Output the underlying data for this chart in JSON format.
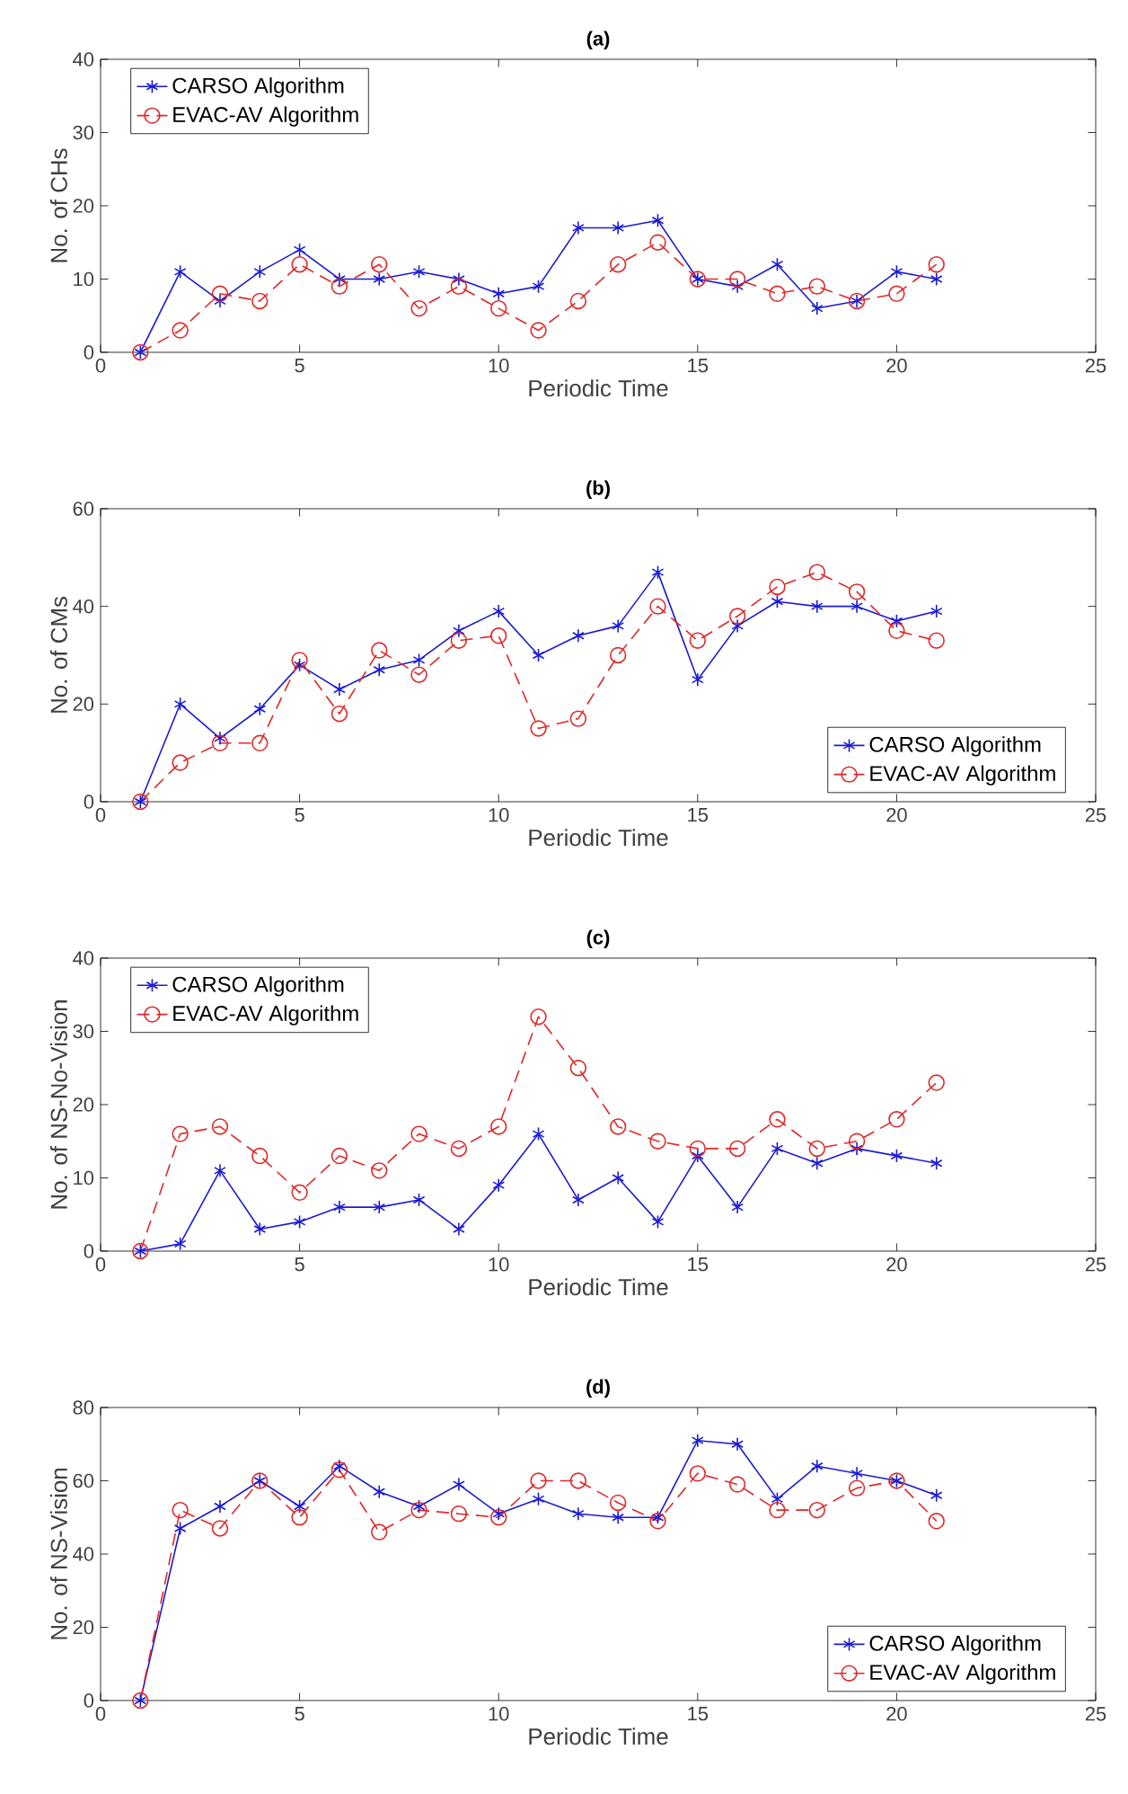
{
  "chart_data": [
    {
      "type": "line",
      "title": "(a)",
      "xlabel": "Periodic Time",
      "ylabel": "No. of CHs",
      "x": [
        1,
        2,
        3,
        4,
        5,
        6,
        7,
        8,
        9,
        10,
        11,
        12,
        13,
        14,
        15,
        16,
        17,
        18,
        19,
        20,
        21
      ],
      "xlim": [
        0,
        25
      ],
      "xticks": [
        0,
        5,
        10,
        15,
        20,
        25
      ],
      "ylim": [
        0,
        40
      ],
      "yticks": [
        0,
        10,
        20,
        30,
        40
      ],
      "legend": "top left",
      "series": [
        {
          "name": "CARSO Algorithm",
          "color": "#1a1ad6",
          "marker": "cross",
          "line_style": "solid",
          "values": [
            0,
            11,
            7,
            11,
            14,
            10,
            10,
            11,
            10,
            8,
            9,
            17,
            17,
            18,
            10,
            9,
            12,
            6,
            7,
            11,
            10
          ]
        },
        {
          "name": "EVAC-AV Algorithm",
          "color": "#e02828",
          "marker": "circle",
          "line_style": "dashed",
          "values": [
            0,
            3,
            8,
            7,
            12,
            9,
            12,
            6,
            9,
            6,
            3,
            7,
            12,
            15,
            10,
            10,
            8,
            9,
            7,
            8,
            12
          ]
        }
      ]
    },
    {
      "type": "line",
      "title": "(b)",
      "xlabel": "Periodic Time",
      "ylabel": "No. of CMs",
      "x": [
        1,
        2,
        3,
        4,
        5,
        6,
        7,
        8,
        9,
        10,
        11,
        12,
        13,
        14,
        15,
        16,
        17,
        18,
        19,
        20,
        21
      ],
      "xlim": [
        0,
        25
      ],
      "xticks": [
        0,
        5,
        10,
        15,
        20,
        25
      ],
      "ylim": [
        0,
        60
      ],
      "yticks": [
        0,
        20,
        40,
        60
      ],
      "legend": "bottom right",
      "series": [
        {
          "name": "CARSO Algorithm",
          "color": "#1a1ad6",
          "marker": "cross",
          "line_style": "solid",
          "values": [
            0,
            20,
            13,
            19,
            28,
            23,
            27,
            29,
            35,
            39,
            30,
            34,
            36,
            47,
            25,
            36,
            41,
            40,
            40,
            37,
            39
          ]
        },
        {
          "name": "EVAC-AV Algorithm",
          "color": "#e02828",
          "marker": "circle",
          "line_style": "dashed",
          "values": [
            0,
            8,
            12,
            12,
            29,
            18,
            31,
            26,
            33,
            34,
            15,
            17,
            30,
            40,
            33,
            38,
            44,
            47,
            43,
            35,
            33
          ]
        }
      ]
    },
    {
      "type": "line",
      "title": "(c)",
      "xlabel": "Periodic Time",
      "ylabel": "No. of NS-No-Vision",
      "x": [
        1,
        2,
        3,
        4,
        5,
        6,
        7,
        8,
        9,
        10,
        11,
        12,
        13,
        14,
        15,
        16,
        17,
        18,
        19,
        20,
        21
      ],
      "xlim": [
        0,
        25
      ],
      "xticks": [
        0,
        5,
        10,
        15,
        20,
        25
      ],
      "ylim": [
        0,
        40
      ],
      "yticks": [
        0,
        10,
        20,
        30,
        40
      ],
      "legend": "top left",
      "series": [
        {
          "name": "CARSO Algorithm",
          "color": "#1a1ad6",
          "marker": "cross",
          "line_style": "solid",
          "values": [
            0,
            1,
            11,
            3,
            4,
            6,
            6,
            7,
            3,
            9,
            16,
            7,
            10,
            4,
            13,
            6,
            14,
            12,
            14,
            13,
            12
          ]
        },
        {
          "name": "EVAC-AV Algorithm",
          "color": "#e02828",
          "marker": "circle",
          "line_style": "dashed",
          "values": [
            0,
            16,
            17,
            13,
            8,
            13,
            11,
            16,
            14,
            17,
            32,
            25,
            17,
            15,
            14,
            14,
            18,
            14,
            15,
            18,
            23
          ]
        }
      ]
    },
    {
      "type": "line",
      "title": "(d)",
      "xlabel": "Periodic Time",
      "ylabel": "No. of NS-Vision",
      "x": [
        1,
        2,
        3,
        4,
        5,
        6,
        7,
        8,
        9,
        10,
        11,
        12,
        13,
        14,
        15,
        16,
        17,
        18,
        19,
        20,
        21
      ],
      "xlim": [
        0,
        25
      ],
      "xticks": [
        0,
        5,
        10,
        15,
        20,
        25
      ],
      "ylim": [
        0,
        80
      ],
      "yticks": [
        0,
        20,
        40,
        60,
        80
      ],
      "legend": "bottom right",
      "series": [
        {
          "name": "CARSO Algorithm",
          "color": "#1a1ad6",
          "marker": "cross",
          "line_style": "solid",
          "values": [
            0,
            47,
            53,
            60,
            53,
            64,
            57,
            53,
            59,
            51,
            55,
            51,
            50,
            50,
            71,
            70,
            55,
            64,
            62,
            60,
            56
          ]
        },
        {
          "name": "EVAC-AV Algorithm",
          "color": "#e02828",
          "marker": "circle",
          "line_style": "dashed",
          "values": [
            0,
            52,
            47,
            60,
            50,
            63,
            46,
            52,
            51,
            50,
            60,
            60,
            54,
            49,
            62,
            59,
            52,
            52,
            58,
            60,
            49
          ]
        }
      ]
    }
  ]
}
